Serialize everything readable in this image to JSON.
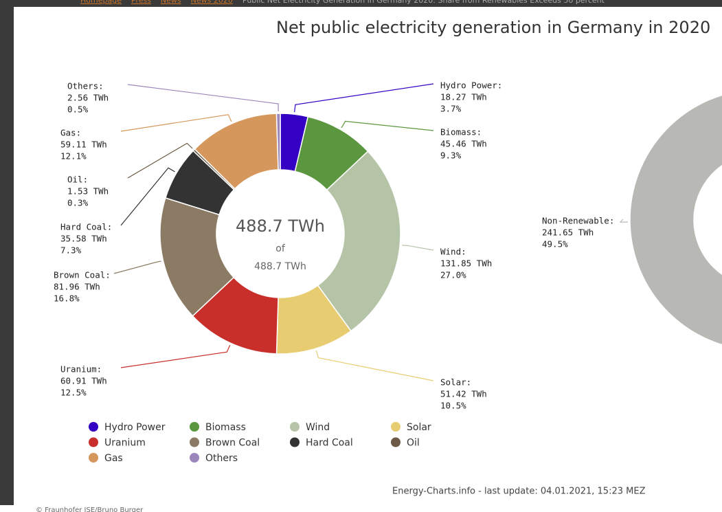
{
  "breadcrumb": [
    "Homepage",
    "Press",
    "News",
    "News 2020",
    "Public Net Electricity Generation in Germany 2020: Share from Renewables Exceeds 50 percent"
  ],
  "copyright": "© Fraunhofer ISE/Bruno Burger",
  "footer": "Energy-Charts.info - last update: 04.01.2021, 15:23 MEZ",
  "chart_data": [
    {
      "type": "donut",
      "title": "Net public electricity generation in Germany in 2020",
      "categories": [
        "Hydro Power",
        "Biomass",
        "Wind",
        "Solar",
        "Uranium",
        "Brown Coal",
        "Hard Coal",
        "Oil",
        "Gas",
        "Others"
      ],
      "slice_labels": [
        "Hydro Power:",
        "Biomass:",
        "Wind:",
        "Solar:",
        "Uranium:",
        "Brown Coal:",
        "Hard Coal:",
        "Oil:",
        "Gas:",
        "Others:"
      ],
      "values": [
        18.27,
        45.46,
        131.85,
        51.42,
        60.91,
        81.96,
        35.58,
        1.53,
        59.11,
        2.56
      ],
      "value_labels": [
        "18.27 TWh",
        "45.46 TWh",
        "131.85 TWh",
        "51.42 TWh",
        "60.91 TWh",
        "81.96 TWh",
        "35.58 TWh",
        "1.53 TWh",
        "59.11 TWh",
        "2.56 TWh"
      ],
      "percents": [
        3.7,
        9.3,
        27.0,
        10.5,
        12.5,
        16.8,
        7.3,
        0.3,
        12.1,
        0.5
      ],
      "percent_labels": [
        "3.7%",
        "9.3%",
        "27.0%",
        "10.5%",
        "12.5%",
        "16.8%",
        "7.3%",
        "0.3%",
        "12.1%",
        "0.5%"
      ],
      "colors": [
        "#3300c4",
        "#5a973e",
        "#b5c4a7",
        "#e8cc72",
        "#c92f2a",
        "#8b7b64",
        "#333333",
        "#6b5a45",
        "#d5975b",
        "#9a86ba"
      ],
      "center_value": "488.7 TWh",
      "center_of": "of",
      "center_total": "488.7 TWh"
    },
    {
      "type": "donut",
      "categories": [
        "Non-Renewable"
      ],
      "slice_labels": [
        "Non-Renewable:"
      ],
      "values": [
        241.65
      ],
      "value_labels": [
        "241.65 TWh"
      ],
      "percents": [
        49.5
      ],
      "percent_labels": [
        "49.5%"
      ],
      "colors": [
        "#b8b8b5"
      ]
    }
  ]
}
